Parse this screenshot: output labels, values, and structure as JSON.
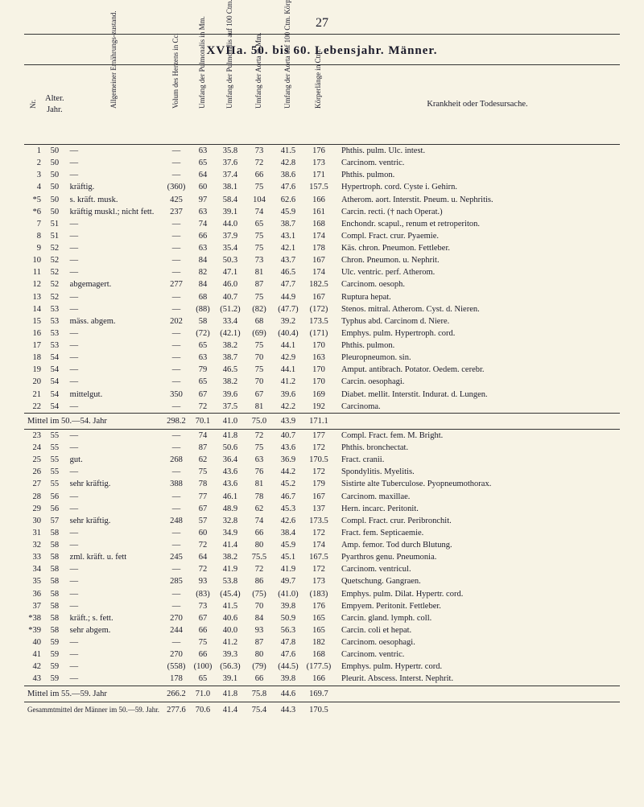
{
  "page_number": "27",
  "title": "XVIIa.  50. bis 60. Lebensjahr.  Männer.",
  "headers": {
    "nr": "Nr.",
    "alter": "Alter. Jahr.",
    "zustand": "Allgemeiner Ernährungs-zustand.",
    "volum": "Volum des Herzens in Cc.",
    "umf_pulm": "Umfang der Pulmonalis in Mm.",
    "umf_pulm100": "Umfang der Pulmonalis auf 100 Ctm. Körperlänge.",
    "umf_aorta": "Umfang der Aorta in Mm.",
    "umf_aorta100": "Umfang der Aorta auf 100 Ctm. Körperlänge.",
    "koerper": "Körperlänge in Ctm.",
    "krankheit": "Krankheit oder Todesursache."
  },
  "rows1": [
    {
      "nr": "1",
      "alter": "50",
      "z": "—",
      "v": "—",
      "c1": "63",
      "c2": "35.8",
      "c3": "73",
      "c4": "41.5",
      "c5": "176",
      "d": "Phthis. pulm.  Ulc. intest."
    },
    {
      "nr": "2",
      "alter": "50",
      "z": "—",
      "v": "—",
      "c1": "65",
      "c2": "37.6",
      "c3": "72",
      "c4": "42.8",
      "c5": "173",
      "d": "Carcinom. ventric."
    },
    {
      "nr": "3",
      "alter": "50",
      "z": "—",
      "v": "—",
      "c1": "64",
      "c2": "37.4",
      "c3": "66",
      "c4": "38.6",
      "c5": "171",
      "d": "Phthis. pulmon."
    },
    {
      "nr": "4",
      "alter": "50",
      "z": "kräftig.",
      "v": "(360)",
      "c1": "60",
      "c2": "38.1",
      "c3": "75",
      "c4": "47.6",
      "c5": "157.5",
      "d": "Hypertroph. cord. Cyste i. Gehirn."
    },
    {
      "nr": "*5",
      "alter": "50",
      "z": "s. kräft. musk.",
      "v": "425",
      "c1": "97",
      "c2": "58.4",
      "c3": "104",
      "c4": "62.6",
      "c5": "166",
      "d": "Atherom. aort.  Interstit. Pneum. u. Nephritis."
    },
    {
      "nr": "*6",
      "alter": "50",
      "z": "kräftig muskl.; nicht fett.",
      "v": "237",
      "c1": "63",
      "c2": "39.1",
      "c3": "74",
      "c4": "45.9",
      "c5": "161",
      "d": "Carcin. recti. († nach Operat.)"
    },
    {
      "nr": "7",
      "alter": "51",
      "z": "—",
      "v": "—",
      "c1": "74",
      "c2": "44.0",
      "c3": "65",
      "c4": "38.7",
      "c5": "168",
      "d": "Enchondr. scapul., renum et retroperiton."
    },
    {
      "nr": "8",
      "alter": "51",
      "z": "—",
      "v": "—",
      "c1": "66",
      "c2": "37.9",
      "c3": "75",
      "c4": "43.1",
      "c5": "174",
      "d": "Compl. Fract. crur.  Pyaemie."
    },
    {
      "nr": "9",
      "alter": "52",
      "z": "—",
      "v": "—",
      "c1": "63",
      "c2": "35.4",
      "c3": "75",
      "c4": "42.1",
      "c5": "178",
      "d": "Käs. chron. Pneumon.  Fettleber."
    },
    {
      "nr": "10",
      "alter": "52",
      "z": "—",
      "v": "—",
      "c1": "84",
      "c2": "50.3",
      "c3": "73",
      "c4": "43.7",
      "c5": "167",
      "d": "Chron. Pneumon. u. Nephrit."
    },
    {
      "nr": "11",
      "alter": "52",
      "z": "—",
      "v": "—",
      "c1": "82",
      "c2": "47.1",
      "c3": "81",
      "c4": "46.5",
      "c5": "174",
      "d": "Ulc. ventric. perf.  Atherom."
    },
    {
      "nr": "12",
      "alter": "52",
      "z": "abgemagert.",
      "v": "277",
      "c1": "84",
      "c2": "46.0",
      "c3": "87",
      "c4": "47.7",
      "c5": "182.5",
      "d": "Carcinom. oesoph."
    },
    {
      "nr": "13",
      "alter": "52",
      "z": "—",
      "v": "—",
      "c1": "68",
      "c2": "40.7",
      "c3": "75",
      "c4": "44.9",
      "c5": "167",
      "d": "Ruptura hepat."
    },
    {
      "nr": "14",
      "alter": "53",
      "z": "—",
      "v": "—",
      "c1": "(88)",
      "c2": "(51.2)",
      "c3": "(82)",
      "c4": "(47.7)",
      "c5": "(172)",
      "d": "Stenos. mitral.  Atherom. Cyst. d. Nieren."
    },
    {
      "nr": "15",
      "alter": "53",
      "z": "mäss. abgem.",
      "v": "202",
      "c1": "58",
      "c2": "33.4",
      "c3": "68",
      "c4": "39.2",
      "c5": "173.5",
      "d": "Typhus abd.  Carcinom d. Niere."
    },
    {
      "nr": "16",
      "alter": "53",
      "z": "—",
      "v": "—",
      "c1": "(72)",
      "c2": "(42.1)",
      "c3": "(69)",
      "c4": "(40.4)",
      "c5": "(171)",
      "d": "Emphys. pulm.  Hypertroph. cord."
    },
    {
      "nr": "17",
      "alter": "53",
      "z": "—",
      "v": "—",
      "c1": "65",
      "c2": "38.2",
      "c3": "75",
      "c4": "44.1",
      "c5": "170",
      "d": "Phthis. pulmon."
    },
    {
      "nr": "18",
      "alter": "54",
      "z": "—",
      "v": "—",
      "c1": "63",
      "c2": "38.7",
      "c3": "70",
      "c4": "42.9",
      "c5": "163",
      "d": "Pleuropneumon. sin."
    },
    {
      "nr": "19",
      "alter": "54",
      "z": "—",
      "v": "—",
      "c1": "79",
      "c2": "46.5",
      "c3": "75",
      "c4": "44.1",
      "c5": "170",
      "d": "Amput. antibrach.  Potator.  Oedem. cerebr."
    },
    {
      "nr": "20",
      "alter": "54",
      "z": "—",
      "v": "—",
      "c1": "65",
      "c2": "38.2",
      "c3": "70",
      "c4": "41.2",
      "c5": "170",
      "d": "Carcin. oesophagi."
    },
    {
      "nr": "21",
      "alter": "54",
      "z": "mittelgut.",
      "v": "350",
      "c1": "67",
      "c2": "39.6",
      "c3": "67",
      "c4": "39.6",
      "c5": "169",
      "d": "Diabet. mellit.  Interstit. Indurat. d. Lungen."
    },
    {
      "nr": "22",
      "alter": "54",
      "z": "—",
      "v": "—",
      "c1": "72",
      "c2": "37.5",
      "c3": "81",
      "c4": "42.2",
      "c5": "192",
      "d": "Carcinoma."
    }
  ],
  "mittel1": {
    "label": "Mittel im 50.—54. Jahr",
    "v": "298.2",
    "c1": "70.1",
    "c2": "41.0",
    "c3": "75.0",
    "c4": "43.9",
    "c5": "171.1",
    "d": ""
  },
  "rows2": [
    {
      "nr": "23",
      "alter": "55",
      "z": "—",
      "v": "—",
      "c1": "74",
      "c2": "41.8",
      "c3": "72",
      "c4": "40.7",
      "c5": "177",
      "d": "Compl. Fract. fem.  M. Bright."
    },
    {
      "nr": "24",
      "alter": "55",
      "z": "—",
      "v": "—",
      "c1": "87",
      "c2": "50.6",
      "c3": "75",
      "c4": "43.6",
      "c5": "172",
      "d": "Phthis. bronchectat."
    },
    {
      "nr": "25",
      "alter": "55",
      "z": "gut.",
      "v": "268",
      "c1": "62",
      "c2": "36.4",
      "c3": "63",
      "c4": "36.9",
      "c5": "170.5",
      "d": "Fract. cranii."
    },
    {
      "nr": "26",
      "alter": "55",
      "z": "—",
      "v": "—",
      "c1": "75",
      "c2": "43.6",
      "c3": "76",
      "c4": "44.2",
      "c5": "172",
      "d": "Spondylitis.  Myelitis."
    },
    {
      "nr": "27",
      "alter": "55",
      "z": "sehr kräftig.",
      "v": "388",
      "c1": "78",
      "c2": "43.6",
      "c3": "81",
      "c4": "45.2",
      "c5": "179",
      "d": "Sistirte alte Tuberculose.  Pyopneumothorax."
    },
    {
      "nr": "28",
      "alter": "56",
      "z": "—",
      "v": "—",
      "c1": "77",
      "c2": "46.1",
      "c3": "78",
      "c4": "46.7",
      "c5": "167",
      "d": "Carcinom. maxillae."
    },
    {
      "nr": "29",
      "alter": "56",
      "z": "—",
      "v": "—",
      "c1": "67",
      "c2": "48.9",
      "c3": "62",
      "c4": "45.3",
      "c5": "137",
      "d": "Hern. incarc.  Peritonit."
    },
    {
      "nr": "30",
      "alter": "57",
      "z": "sehr kräftig.",
      "v": "248",
      "c1": "57",
      "c2": "32.8",
      "c3": "74",
      "c4": "42.6",
      "c5": "173.5",
      "d": "Compl. Fract. crur. Peribronchit."
    },
    {
      "nr": "31",
      "alter": "58",
      "z": "—",
      "v": "—",
      "c1": "60",
      "c2": "34.9",
      "c3": "66",
      "c4": "38.4",
      "c5": "172",
      "d": "Fract. fem.  Septicaemie."
    },
    {
      "nr": "32",
      "alter": "58",
      "z": "—",
      "v": "—",
      "c1": "72",
      "c2": "41.4",
      "c3": "80",
      "c4": "45.9",
      "c5": "174",
      "d": "Amp. femor.  Tod durch Blutung."
    },
    {
      "nr": "33",
      "alter": "58",
      "z": "zml. kräft. u. fett",
      "v": "245",
      "c1": "64",
      "c2": "38.2",
      "c3": "75.5",
      "c4": "45.1",
      "c5": "167.5",
      "d": "Pyarthros genu.  Pneumonia."
    },
    {
      "nr": "34",
      "alter": "58",
      "z": "—",
      "v": "—",
      "c1": "72",
      "c2": "41.9",
      "c3": "72",
      "c4": "41.9",
      "c5": "172",
      "d": "Carcinom. ventricul."
    },
    {
      "nr": "35",
      "alter": "58",
      "z": "—",
      "v": "285",
      "c1": "93",
      "c2": "53.8",
      "c3": "86",
      "c4": "49.7",
      "c5": "173",
      "d": "Quetschung.  Gangraen."
    },
    {
      "nr": "36",
      "alter": "58",
      "z": "—",
      "v": "—",
      "c1": "(83)",
      "c2": "(45.4)",
      "c3": "(75)",
      "c4": "(41.0)",
      "c5": "(183)",
      "d": "Emphys. pulm.  Dilat. Hypertr. cord."
    },
    {
      "nr": "37",
      "alter": "58",
      "z": "—",
      "v": "—",
      "c1": "73",
      "c2": "41.5",
      "c3": "70",
      "c4": "39.8",
      "c5": "176",
      "d": "Empyem.  Peritonit.  Fettleber."
    },
    {
      "nr": "*38",
      "alter": "58",
      "z": "kräft.; s. fett.",
      "v": "270",
      "c1": "67",
      "c2": "40.6",
      "c3": "84",
      "c4": "50.9",
      "c5": "165",
      "d": "Carcin. gland. lymph. coll."
    },
    {
      "nr": "*39",
      "alter": "58",
      "z": "sehr abgem.",
      "v": "244",
      "c1": "66",
      "c2": "40.0",
      "c3": "93",
      "c4": "56.3",
      "c5": "165",
      "d": "Carcin. coli et hepat."
    },
    {
      "nr": "40",
      "alter": "59",
      "z": "—",
      "v": "—",
      "c1": "75",
      "c2": "41.2",
      "c3": "87",
      "c4": "47.8",
      "c5": "182",
      "d": "Carcinom. oesophagi."
    },
    {
      "nr": "41",
      "alter": "59",
      "z": "—",
      "v": "270",
      "c1": "66",
      "c2": "39.3",
      "c3": "80",
      "c4": "47.6",
      "c5": "168",
      "d": "Carcinom. ventric."
    },
    {
      "nr": "42",
      "alter": "59",
      "z": "—",
      "v": "(558)",
      "c1": "(100)",
      "c2": "(56.3)",
      "c3": "(79)",
      "c4": "(44.5)",
      "c5": "(177.5)",
      "d": "Emphys. pulm.  Hypertr. cord."
    },
    {
      "nr": "43",
      "alter": "59",
      "z": "—",
      "v": "178",
      "c1": "65",
      "c2": "39.1",
      "c3": "66",
      "c4": "39.8",
      "c5": "166",
      "d": "Pleurit. Abscess.  Interst. Nephrit."
    }
  ],
  "mittel2": {
    "label": "Mittel im 55.—59. Jahr",
    "v": "266.2",
    "c1": "71.0",
    "c2": "41.8",
    "c3": "75.8",
    "c4": "44.6",
    "c5": "169.7",
    "d": ""
  },
  "gesamt": {
    "label": "Gesammtmittel der Männer im 50.—59. Jahr.",
    "v": "277.6",
    "c1": "70.6",
    "c2": "41.4",
    "c3": "75.4",
    "c4": "44.3",
    "c5": "170.5",
    "d": ""
  }
}
